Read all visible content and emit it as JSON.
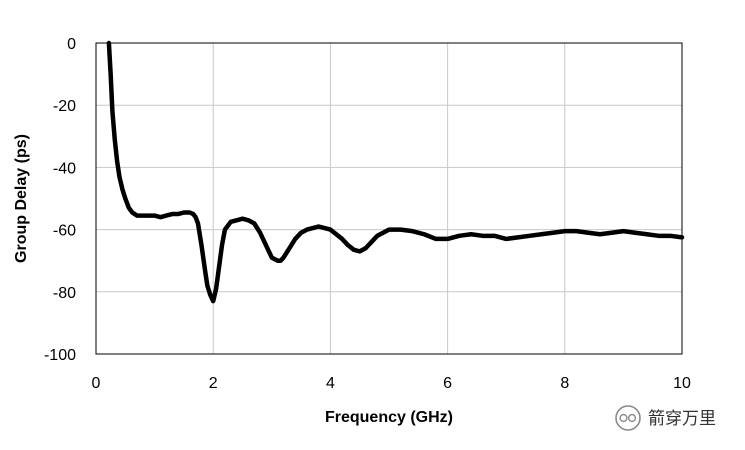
{
  "chart_data": {
    "type": "line",
    "title": "",
    "xlabel": "Frequency (GHz)",
    "ylabel": "Group Delay (ps)",
    "xlim": [
      0,
      10
    ],
    "ylim": [
      -100,
      0
    ],
    "x_ticks": [
      0,
      2,
      4,
      6,
      8,
      10
    ],
    "y_ticks": [
      0,
      -20,
      -40,
      -60,
      -80,
      -100
    ],
    "x_tick_labels": [
      "0",
      "2",
      "4",
      "6",
      "8",
      "10"
    ],
    "y_tick_labels": [
      "0",
      "-20",
      "-40",
      "-60",
      "-80",
      "-100"
    ],
    "grid": true,
    "legend": "none",
    "series": [
      {
        "color": "#000000",
        "x": [
          0.22,
          0.25,
          0.28,
          0.32,
          0.36,
          0.4,
          0.45,
          0.5,
          0.56,
          0.62,
          0.7,
          0.8,
          0.9,
          1.0,
          1.1,
          1.2,
          1.3,
          1.4,
          1.5,
          1.6,
          1.66,
          1.7,
          1.74,
          1.8,
          1.86,
          1.9,
          1.95,
          2.0,
          2.05,
          2.1,
          2.15,
          2.2,
          2.3,
          2.4,
          2.5,
          2.6,
          2.7,
          2.8,
          2.9,
          3.0,
          3.1,
          3.15,
          3.2,
          3.3,
          3.4,
          3.5,
          3.6,
          3.7,
          3.8,
          3.9,
          4.0,
          4.1,
          4.2,
          4.3,
          4.4,
          4.5,
          4.6,
          4.7,
          4.8,
          4.9,
          5.0,
          5.2,
          5.4,
          5.6,
          5.8,
          6.0,
          6.2,
          6.4,
          6.6,
          6.8,
          7.0,
          7.2,
          7.4,
          7.6,
          7.8,
          8.0,
          8.2,
          8.4,
          8.6,
          8.8,
          9.0,
          9.2,
          9.4,
          9.6,
          9.8,
          10.0
        ],
        "y": [
          0,
          -10,
          -22,
          -31,
          -38,
          -43,
          -47,
          -50,
          -53,
          -54.5,
          -55.5,
          -55.5,
          -55.5,
          -55.5,
          -56,
          -55.5,
          -55,
          -55,
          -54.5,
          -54.5,
          -55,
          -56,
          -58,
          -65,
          -73,
          -78,
          -81,
          -83,
          -79,
          -72,
          -65,
          -60,
          -57.5,
          -57,
          -56.5,
          -57,
          -58,
          -61,
          -65,
          -69,
          -70,
          -70,
          -69,
          -66,
          -63,
          -61,
          -60,
          -59.5,
          -59,
          -59.5,
          -60,
          -61.5,
          -63,
          -65,
          -66.5,
          -67,
          -66,
          -64,
          -62,
          -61,
          -60,
          -60,
          -60.5,
          -61.5,
          -63,
          -63,
          -62,
          -61.5,
          -62,
          -62,
          -63,
          -62.5,
          -62,
          -61.5,
          -61,
          -60.5,
          -60.5,
          -61,
          -61.5,
          -61,
          -60.5,
          -61,
          -61.5,
          -62,
          -62,
          -62.5
        ]
      }
    ]
  },
  "watermark": {
    "text": "箭穿万里",
    "icon": "wechat-icon"
  }
}
